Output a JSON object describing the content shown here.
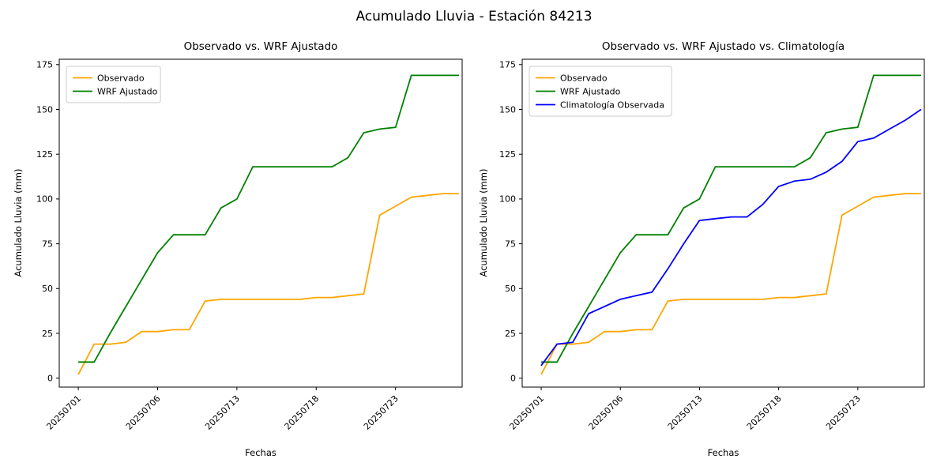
{
  "figure": {
    "title": "Acumulado Lluvia - Estación 84213",
    "background_color": "#ffffff"
  },
  "chart_data": [
    {
      "type": "line",
      "title": "Observado vs. WRF Ajustado",
      "xlabel": "Fechas",
      "ylabel": "Acumulado Lluvia (mm)",
      "ylim": [
        -5,
        178
      ],
      "xlim": [
        -1.2,
        24.2
      ],
      "yticks": [
        0,
        25,
        50,
        75,
        100,
        125,
        150,
        175
      ],
      "xticks": {
        "positions": [
          0,
          5,
          10,
          15,
          20
        ],
        "labels": [
          "20250701",
          "20250706",
          "20250713",
          "20250718",
          "20250723"
        ]
      },
      "grid": false,
      "legend_position": "upper left",
      "series": [
        {
          "name": "Observado",
          "color": "#FFA500",
          "values": [
            2,
            19,
            19,
            20,
            26,
            26,
            27,
            27,
            43,
            44,
            44,
            44,
            44,
            44,
            44,
            45,
            45,
            46,
            47,
            91,
            96,
            101,
            102,
            103,
            103
          ]
        },
        {
          "name": "WRF Ajustado",
          "color": "#008000",
          "values": [
            9,
            9,
            25,
            40,
            55,
            70,
            80,
            80,
            80,
            95,
            100,
            118,
            118,
            118,
            118,
            118,
            118,
            123,
            137,
            139,
            140,
            169,
            169,
            169,
            169
          ]
        }
      ]
    },
    {
      "type": "line",
      "title": "Observado vs. WRF Ajustado vs. Climatología",
      "xlabel": "Fechas",
      "ylabel": "Acumulado Lluvia (mm)",
      "ylim": [
        -5,
        178
      ],
      "xlim": [
        -1.2,
        24.2
      ],
      "yticks": [
        0,
        25,
        50,
        75,
        100,
        125,
        150,
        175
      ],
      "xticks": {
        "positions": [
          0,
          5,
          10,
          15,
          20
        ],
        "labels": [
          "20250701",
          "20250706",
          "20250713",
          "20250718",
          "20250723"
        ]
      },
      "grid": false,
      "legend_position": "upper left",
      "series": [
        {
          "name": "Observado",
          "color": "#FFA500",
          "values": [
            2,
            19,
            19,
            20,
            26,
            26,
            27,
            27,
            43,
            44,
            44,
            44,
            44,
            44,
            44,
            45,
            45,
            46,
            47,
            91,
            96,
            101,
            102,
            103,
            103
          ]
        },
        {
          "name": "WRF Ajustado",
          "color": "#008000",
          "values": [
            9,
            9,
            25,
            40,
            55,
            70,
            80,
            80,
            80,
            95,
            100,
            118,
            118,
            118,
            118,
            118,
            118,
            123,
            137,
            139,
            140,
            169,
            169,
            169,
            169
          ]
        },
        {
          "name": "Climatología Observada",
          "color": "#0000FF",
          "values": [
            7,
            19,
            20,
            36,
            40,
            44,
            46,
            48,
            61,
            75,
            88,
            89,
            90,
            90,
            97,
            107,
            110,
            111,
            115,
            121,
            132,
            134,
            139,
            144,
            150
          ]
        }
      ]
    }
  ]
}
